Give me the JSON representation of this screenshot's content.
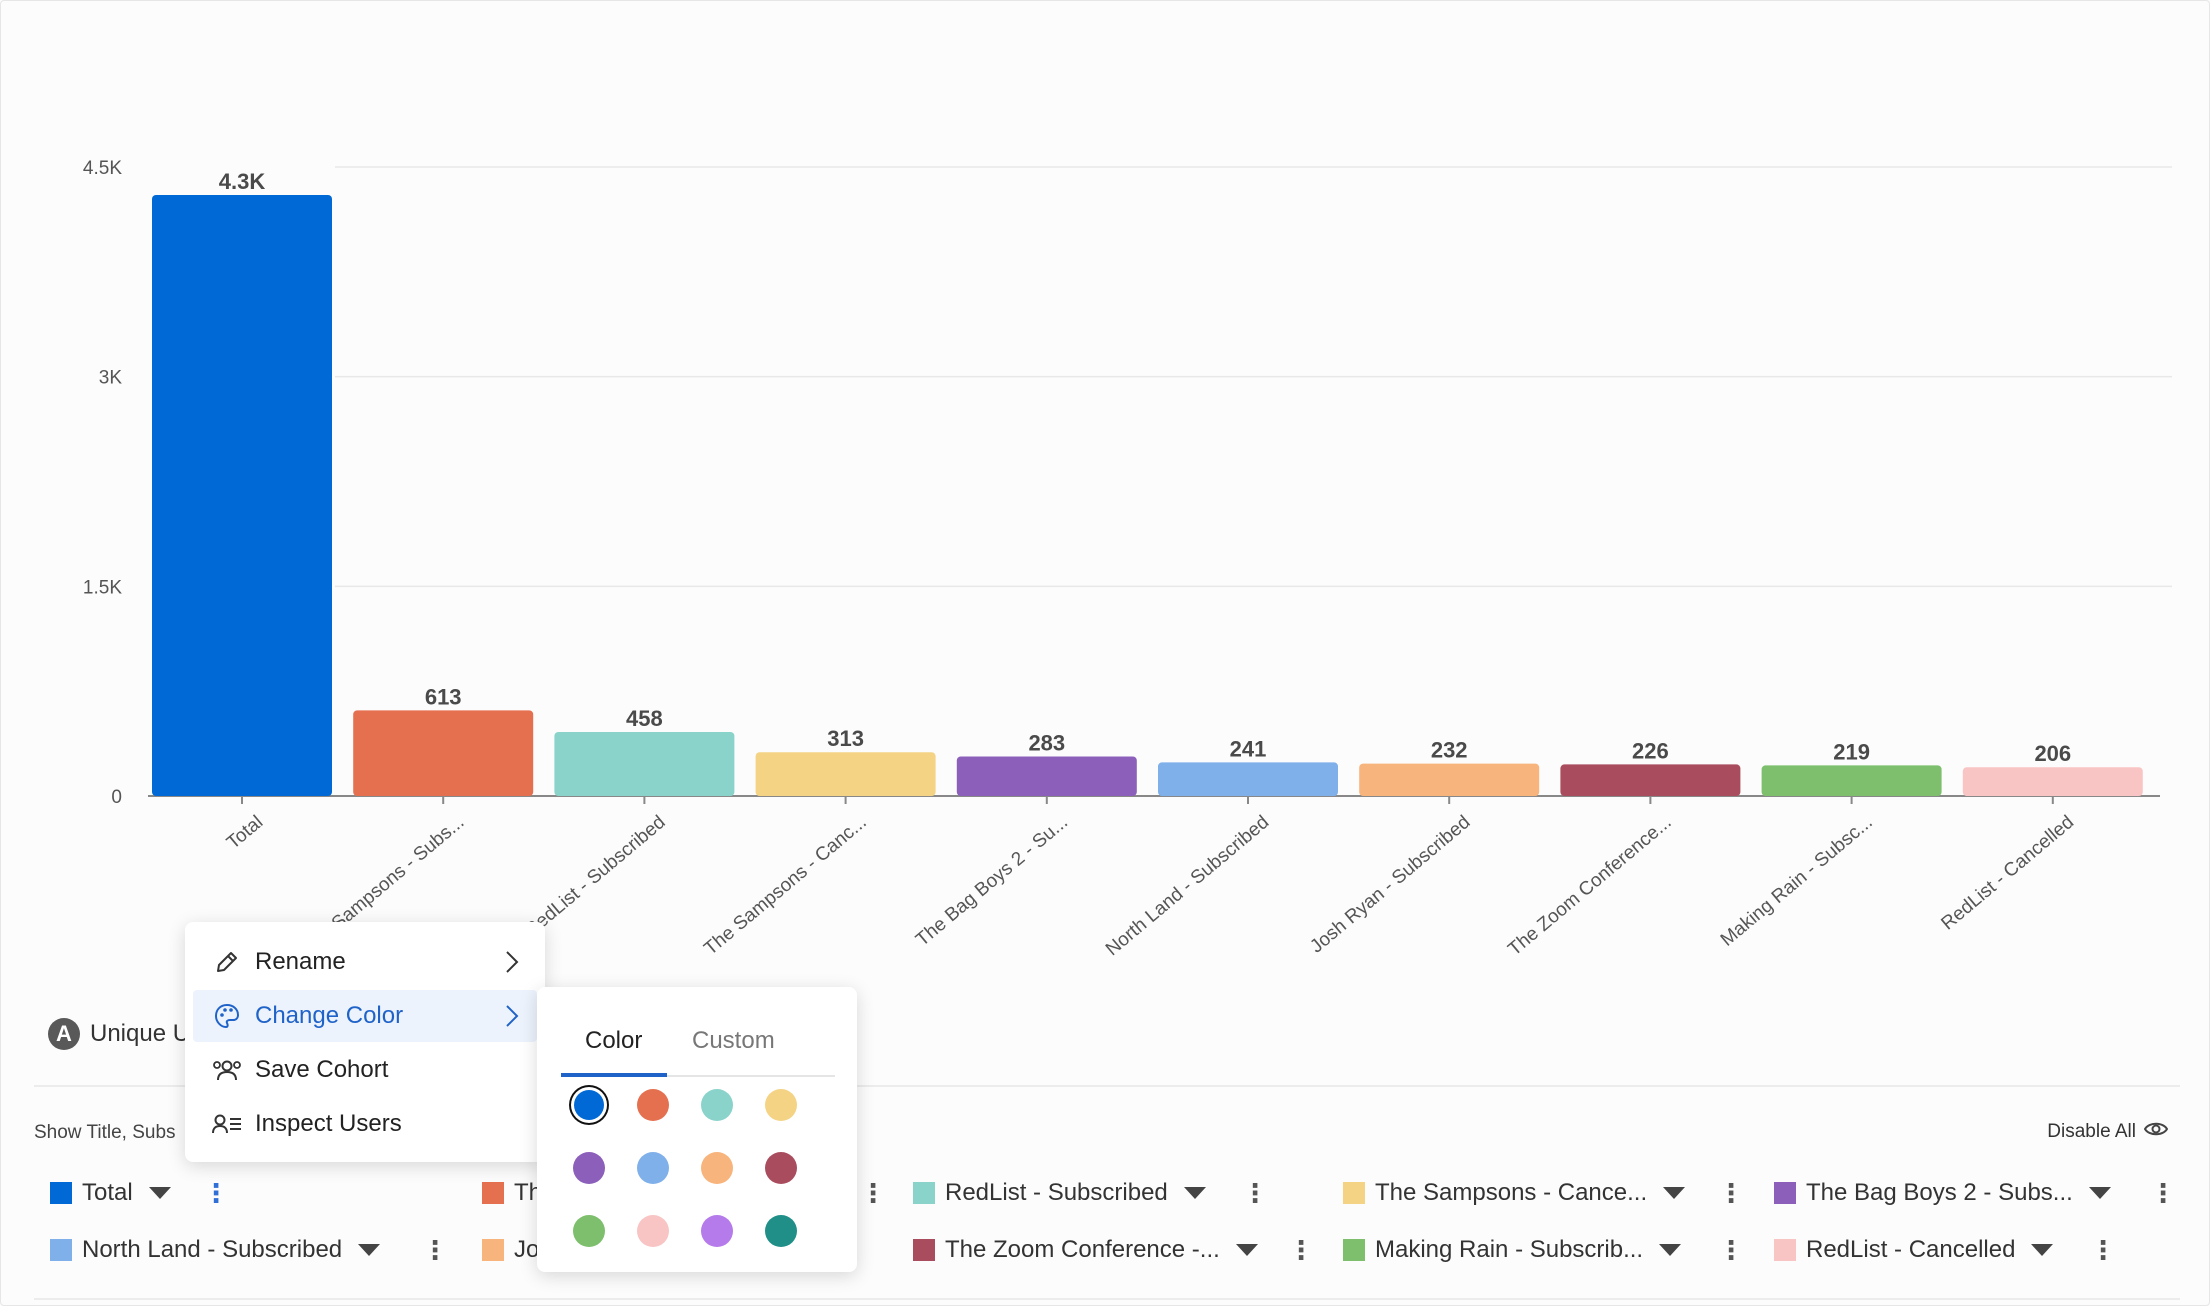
{
  "chart_data": {
    "type": "bar",
    "categories": [
      "Total",
      "The Sampsons - Subs...",
      "RedList - Subscribed",
      "The Sampsons - Canc...",
      "The Bag Boys 2 - Su...",
      "North Land - Subscribed",
      "Josh Ryan - Subscribed",
      "The Zoom Conference...",
      "Making Rain - Subsc...",
      "RedList - Cancelled"
    ],
    "values": [
      4300,
      613,
      458,
      313,
      283,
      241,
      232,
      226,
      219,
      206
    ],
    "value_labels": [
      "4.3K",
      "613",
      "458",
      "313",
      "283",
      "241",
      "232",
      "226",
      "219",
      "206"
    ],
    "colors": [
      "#0069d6",
      "#e5704f",
      "#89d3cb",
      "#f4d384",
      "#8c5fba",
      "#7fb0ea",
      "#f7b47d",
      "#a94d5e",
      "#7dbf6d",
      "#f9c4c4"
    ],
    "ylim": [
      0,
      4500
    ],
    "yticks": [
      0,
      1500,
      3000,
      4500
    ],
    "ytick_labels": [
      "0",
      "1.5K",
      "3K",
      "4.5K"
    ],
    "grid": true
  },
  "metric": {
    "badge": "A",
    "label": "Unique U"
  },
  "controls": {
    "show_title": "Show Title, Subs",
    "disable_all": "Disable All"
  },
  "legend": [
    {
      "label": "Total",
      "color": "#0069d6"
    },
    {
      "label": "Th",
      "color": "#e5704f"
    },
    {
      "label": "RedList - Subscribed",
      "color": "#89d3cb"
    },
    {
      "label": "The Sampsons - Cance...",
      "color": "#f4d384"
    },
    {
      "label": "The Bag Boys 2 - Subs...",
      "color": "#8c5fba"
    },
    {
      "label": "North Land - Subscribed",
      "color": "#7fb0ea"
    },
    {
      "label": "Jo",
      "color": "#f7b47d"
    },
    {
      "label": "The Zoom Conference -...",
      "color": "#a94d5e"
    },
    {
      "label": "Making Rain - Subscrib...",
      "color": "#7dbf6d"
    },
    {
      "label": "RedList - Cancelled",
      "color": "#f9c4c4"
    }
  ],
  "context_menu": {
    "rename": "Rename",
    "change_color": "Change Color",
    "save_cohort": "Save Cohort",
    "inspect_users": "Inspect Users"
  },
  "color_picker": {
    "tabs": [
      "Color",
      "Custom"
    ],
    "selected_tab": "Color",
    "palette": [
      "#0069d6",
      "#e5704f",
      "#89d3cb",
      "#f4d384",
      "#8c5fba",
      "#7fb0ea",
      "#f7b47d",
      "#a94d5e",
      "#7dbf6d",
      "#f9c4c4",
      "#b57bea",
      "#1f8f88"
    ],
    "selected_color": "#0069d6"
  },
  "icons": [
    "pencil-icon",
    "palette-icon",
    "users-icon",
    "list-user-icon",
    "chevron-right-icon",
    "caret-down-icon",
    "kebab-icon",
    "eye-icon"
  ]
}
